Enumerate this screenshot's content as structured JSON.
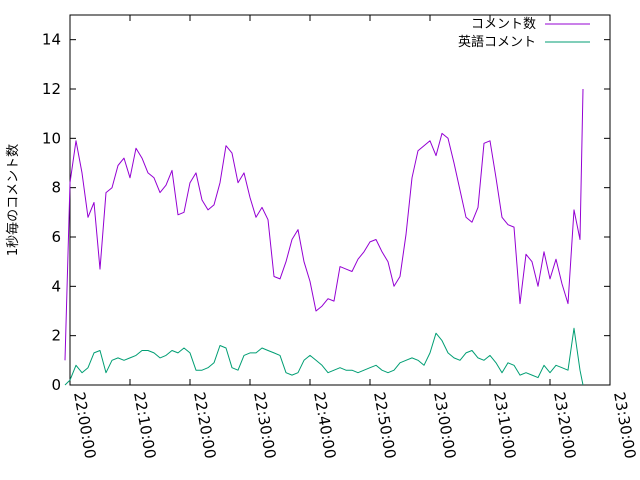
{
  "chart_data": {
    "type": "line",
    "xlabel": "",
    "ylabel": "1秒毎のコメント数",
    "ylim": [
      0,
      15
    ],
    "yticks": [
      0,
      2,
      4,
      6,
      8,
      10,
      12,
      14
    ],
    "xlim": [
      "22:00:00",
      "23:30:00"
    ],
    "xticks": [
      "22:00:00",
      "22:10:00",
      "22:20:00",
      "22:30:00",
      "22:40:00",
      "22:50:00",
      "23:00:00",
      "23:10:00",
      "23:20:00",
      "23:30:00"
    ],
    "grid": false,
    "legend_position": "top-right",
    "series": [
      {
        "name": "コメント数",
        "color": "#9400d3",
        "x": [
          "21:59:10",
          "22:00:00",
          "22:01:00",
          "22:02:00",
          "22:03:00",
          "22:04:00",
          "22:05:00",
          "22:06:00",
          "22:07:00",
          "22:08:00",
          "22:09:00",
          "22:10:00",
          "22:11:00",
          "22:12:00",
          "22:13:00",
          "22:14:00",
          "22:15:00",
          "22:16:00",
          "22:17:00",
          "22:18:00",
          "22:19:00",
          "22:20:00",
          "22:21:00",
          "22:22:00",
          "22:23:00",
          "22:24:00",
          "22:25:00",
          "22:26:00",
          "22:27:00",
          "22:28:00",
          "22:29:00",
          "22:30:00",
          "22:31:00",
          "22:32:00",
          "22:33:00",
          "22:34:00",
          "22:35:00",
          "22:36:00",
          "22:37:00",
          "22:38:00",
          "22:39:00",
          "22:40:00",
          "22:41:00",
          "22:42:00",
          "22:43:00",
          "22:44:00",
          "22:45:00",
          "22:46:00",
          "22:47:00",
          "22:48:00",
          "22:49:00",
          "22:50:00",
          "22:51:00",
          "22:52:00",
          "22:53:00",
          "22:54:00",
          "22:55:00",
          "22:56:00",
          "22:57:00",
          "22:58:00",
          "22:59:00",
          "23:00:00",
          "23:01:00",
          "23:02:00",
          "23:03:00",
          "23:04:00",
          "23:05:00",
          "23:06:00",
          "23:07:00",
          "23:08:00",
          "23:09:00",
          "23:10:00",
          "23:11:00",
          "23:12:00",
          "23:13:00",
          "23:14:00",
          "23:15:00",
          "23:16:00",
          "23:17:00",
          "23:18:00",
          "23:19:00",
          "23:20:00",
          "23:21:00",
          "23:22:00",
          "23:23:00",
          "23:24:00",
          "23:25:00",
          "23:25:30"
        ],
        "values": [
          1.0,
          8.2,
          9.9,
          8.6,
          6.8,
          7.4,
          4.7,
          7.8,
          8.0,
          8.9,
          9.2,
          8.4,
          9.6,
          9.2,
          8.6,
          8.4,
          7.8,
          8.1,
          8.7,
          6.9,
          7.0,
          8.2,
          8.6,
          7.5,
          7.1,
          7.3,
          8.2,
          9.7,
          9.4,
          8.2,
          8.6,
          7.6,
          6.8,
          7.2,
          6.7,
          4.4,
          4.3,
          5.0,
          5.9,
          6.3,
          5.0,
          4.2,
          3.0,
          3.2,
          3.5,
          3.4,
          4.8,
          4.7,
          4.6,
          5.1,
          5.4,
          5.8,
          5.9,
          5.4,
          5.0,
          4.0,
          4.4,
          6.1,
          8.4,
          9.5,
          9.7,
          9.9,
          9.3,
          10.2,
          10.0,
          9.0,
          7.9,
          6.8,
          6.6,
          7.2,
          9.8,
          9.9,
          8.4,
          6.8,
          6.5,
          6.4,
          3.3,
          5.3,
          5.0,
          4.0,
          5.4,
          4.3,
          5.1,
          4.1,
          3.3,
          7.1,
          5.9,
          12.0
        ]
      },
      {
        "name": "英語コメント",
        "color": "#009e73",
        "x": [
          "21:59:10",
          "22:00:00",
          "22:01:00",
          "22:02:00",
          "22:03:00",
          "22:04:00",
          "22:05:00",
          "22:06:00",
          "22:07:00",
          "22:08:00",
          "22:09:00",
          "22:10:00",
          "22:11:00",
          "22:12:00",
          "22:13:00",
          "22:14:00",
          "22:15:00",
          "22:16:00",
          "22:17:00",
          "22:18:00",
          "22:19:00",
          "22:20:00",
          "22:21:00",
          "22:22:00",
          "22:23:00",
          "22:24:00",
          "22:25:00",
          "22:26:00",
          "22:27:00",
          "22:28:00",
          "22:29:00",
          "22:30:00",
          "22:31:00",
          "22:32:00",
          "22:33:00",
          "22:34:00",
          "22:35:00",
          "22:36:00",
          "22:37:00",
          "22:38:00",
          "22:39:00",
          "22:40:00",
          "22:41:00",
          "22:42:00",
          "22:43:00",
          "22:44:00",
          "22:45:00",
          "22:46:00",
          "22:47:00",
          "22:48:00",
          "22:49:00",
          "22:50:00",
          "22:51:00",
          "22:52:00",
          "22:53:00",
          "22:54:00",
          "22:55:00",
          "22:56:00",
          "22:57:00",
          "22:58:00",
          "22:59:00",
          "23:00:00",
          "23:01:00",
          "23:02:00",
          "23:03:00",
          "23:04:00",
          "23:05:00",
          "23:06:00",
          "23:07:00",
          "23:08:00",
          "23:09:00",
          "23:10:00",
          "23:11:00",
          "23:12:00",
          "23:13:00",
          "23:14:00",
          "23:15:00",
          "23:16:00",
          "23:17:00",
          "23:18:00",
          "23:19:00",
          "23:20:00",
          "23:21:00",
          "23:22:00",
          "23:23:00",
          "23:24:00",
          "23:25:00",
          "23:25:30"
        ],
        "values": [
          0.0,
          0.2,
          0.8,
          0.5,
          0.7,
          1.3,
          1.4,
          0.5,
          1.0,
          1.1,
          1.0,
          1.1,
          1.2,
          1.4,
          1.4,
          1.3,
          1.1,
          1.2,
          1.4,
          1.3,
          1.5,
          1.3,
          0.6,
          0.6,
          0.7,
          0.9,
          1.6,
          1.5,
          0.7,
          0.6,
          1.2,
          1.3,
          1.3,
          1.5,
          1.4,
          1.3,
          1.2,
          0.5,
          0.4,
          0.5,
          1.0,
          1.2,
          1.0,
          0.8,
          0.5,
          0.6,
          0.7,
          0.6,
          0.6,
          0.5,
          0.6,
          0.7,
          0.8,
          0.6,
          0.5,
          0.6,
          0.9,
          1.0,
          1.1,
          1.0,
          0.8,
          1.3,
          2.1,
          1.8,
          1.3,
          1.1,
          1.0,
          1.3,
          1.4,
          1.1,
          1.0,
          1.2,
          0.9,
          0.5,
          0.9,
          0.8,
          0.4,
          0.5,
          0.4,
          0.3,
          0.8,
          0.5,
          0.8,
          0.7,
          0.6,
          2.3,
          0.6,
          0.0
        ]
      }
    ]
  }
}
